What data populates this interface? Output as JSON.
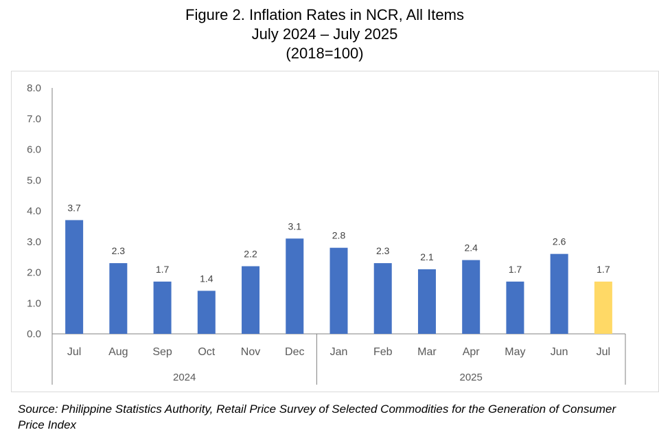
{
  "title": {
    "line1": "Figure 2. Inflation Rates in NCR, All Items",
    "line2": "July 2024 – July 2025",
    "line3": "(2018=100)"
  },
  "source": "Source: Philippine Statistics Authority, Retail Price Survey of Selected Commodities for the Generation of Consumer Price Index",
  "chart_data": {
    "type": "bar",
    "categories": [
      "Jul",
      "Aug",
      "Sep",
      "Oct",
      "Nov",
      "Dec",
      "Jan",
      "Feb",
      "Mar",
      "Apr",
      "May",
      "Jun",
      "Jul"
    ],
    "groups": [
      {
        "label": "2024",
        "count": 6
      },
      {
        "label": "2025",
        "count": 7
      }
    ],
    "values": [
      3.7,
      2.3,
      1.7,
      1.4,
      2.2,
      3.1,
      2.8,
      2.3,
      2.1,
      2.4,
      1.7,
      2.6,
      1.7
    ],
    "data_labels": [
      "3.7",
      "2.3",
      "1.7",
      "1.4",
      "2.2",
      "3.1",
      "2.8",
      "2.3",
      "2.1",
      "2.4",
      "1.7",
      "2.6",
      "1.7"
    ],
    "ylim": [
      0,
      8
    ],
    "yticks": [
      "0.0",
      "1.0",
      "2.0",
      "3.0",
      "4.0",
      "5.0",
      "6.0",
      "7.0",
      "8.0"
    ],
    "grid": false,
    "legend": "none",
    "colors": {
      "bar": "#4472C4",
      "highlight": "#FFD966",
      "axis": "#808080",
      "text": "#595959"
    },
    "highlight_index": 12
  }
}
